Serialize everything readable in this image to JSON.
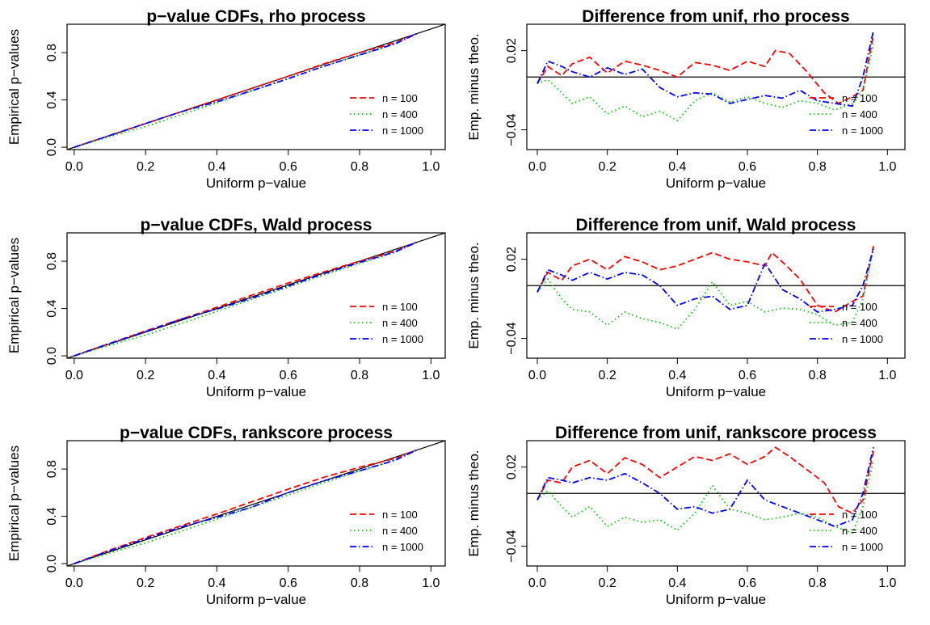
{
  "chart_data": [
    {
      "type": "line",
      "panel": "cdf",
      "title": "p−value CDFs, rho process",
      "xlabel": "Uniform p−value",
      "ylabel": "Empirical p−values",
      "xlim": [
        -0.02,
        1.04
      ],
      "ylim": [
        -0.02,
        1.04
      ],
      "xticks": [
        "0.0",
        "0.2",
        "0.4",
        "0.6",
        "0.8",
        "1.0"
      ],
      "yticks": [
        "0.0",
        "0.4",
        "0.8"
      ],
      "reference_line": "y = x",
      "legend_placement": "bottom-right",
      "series": [
        {
          "name": "n = 100",
          "color": "#ff0000",
          "dash": "dashed",
          "x": [
            0,
            0.1,
            0.2,
            0.3,
            0.4,
            0.5,
            0.6,
            0.7,
            0.8,
            0.9,
            0.96
          ],
          "y": [
            0,
            0.1,
            0.2,
            0.3,
            0.4,
            0.5,
            0.6,
            0.705,
            0.8,
            0.885,
            0.96
          ]
        },
        {
          "name": "n = 400",
          "color": "#00cc00",
          "dash": "dotted",
          "x": [
            0,
            0.1,
            0.2,
            0.3,
            0.4,
            0.5,
            0.6,
            0.7,
            0.8,
            0.9,
            0.96
          ],
          "y": [
            0,
            0.09,
            0.175,
            0.275,
            0.375,
            0.48,
            0.58,
            0.685,
            0.78,
            0.875,
            0.96
          ]
        },
        {
          "name": "n = 1000",
          "color": "#0000ff",
          "dash": "dotdash",
          "x": [
            0,
            0.1,
            0.2,
            0.3,
            0.4,
            0.5,
            0.6,
            0.7,
            0.8,
            0.9,
            0.96
          ],
          "y": [
            0,
            0.1,
            0.2,
            0.3,
            0.385,
            0.48,
            0.58,
            0.685,
            0.78,
            0.875,
            0.96
          ]
        }
      ]
    },
    {
      "type": "line",
      "panel": "diff",
      "title": "Difference from unif, rho process",
      "xlabel": "Uniform p−value",
      "ylabel": "Emp. minus theo.",
      "xlim": [
        -0.03,
        1.05
      ],
      "ylim": [
        -0.055,
        0.04
      ],
      "xticks": [
        "0.0",
        "0.2",
        "0.4",
        "0.6",
        "0.8",
        "1.0"
      ],
      "yticks": [
        "−0.04",
        "0.02"
      ],
      "reference_line": "y = 0",
      "legend_placement": "bottom-right",
      "series": [
        {
          "name": "n = 100",
          "color": "#ff0000",
          "dash": "dashed",
          "x": [
            0,
            0.03,
            0.07,
            0.1,
            0.15,
            0.2,
            0.25,
            0.3,
            0.35,
            0.4,
            0.45,
            0.5,
            0.55,
            0.6,
            0.65,
            0.68,
            0.72,
            0.77,
            0.82,
            0.86,
            0.9,
            0.93,
            0.96
          ],
          "y": [
            -0.005,
            0.008,
            0.001,
            0.01,
            0.015,
            0.003,
            0.012,
            0.009,
            0.005,
            0,
            0.011,
            0.009,
            0.005,
            0.012,
            0.008,
            0.02,
            0.018,
            0.004,
            -0.012,
            -0.02,
            -0.015,
            -0.01,
            0.032
          ]
        },
        {
          "name": "n = 400",
          "color": "#00cc00",
          "dash": "dotted",
          "x": [
            0,
            0.03,
            0.07,
            0.1,
            0.15,
            0.2,
            0.25,
            0.3,
            0.35,
            0.4,
            0.45,
            0.5,
            0.55,
            0.6,
            0.65,
            0.7,
            0.75,
            0.8,
            0.85,
            0.9,
            0.93,
            0.96
          ],
          "y": [
            -0.005,
            -0.002,
            -0.012,
            -0.02,
            -0.015,
            -0.028,
            -0.022,
            -0.03,
            -0.026,
            -0.033,
            -0.018,
            -0.012,
            -0.019,
            -0.015,
            -0.02,
            -0.023,
            -0.018,
            -0.02,
            -0.025,
            -0.02,
            -0.01,
            0.025
          ]
        },
        {
          "name": "n = 1000",
          "color": "#0000ff",
          "dash": "dotdash",
          "x": [
            0,
            0.03,
            0.07,
            0.1,
            0.15,
            0.2,
            0.25,
            0.3,
            0.35,
            0.4,
            0.45,
            0.5,
            0.55,
            0.6,
            0.65,
            0.7,
            0.75,
            0.8,
            0.85,
            0.9,
            0.93,
            0.96
          ],
          "y": [
            -0.005,
            0.012,
            0.008,
            0.004,
            0,
            0.007,
            0.002,
            0.006,
            -0.008,
            -0.015,
            -0.012,
            -0.013,
            -0.02,
            -0.017,
            -0.014,
            -0.016,
            -0.01,
            -0.018,
            -0.02,
            -0.022,
            0,
            0.035
          ]
        }
      ]
    },
    {
      "type": "line",
      "panel": "cdf",
      "title": "p−value CDFs, Wald process",
      "xlabel": "Uniform p−value",
      "ylabel": "Empirical p−values",
      "xlim": [
        -0.02,
        1.04
      ],
      "ylim": [
        -0.02,
        1.04
      ],
      "xticks": [
        "0.0",
        "0.2",
        "0.4",
        "0.6",
        "0.8",
        "1.0"
      ],
      "yticks": [
        "0.0",
        "0.4",
        "0.8"
      ],
      "reference_line": "y = x",
      "legend_placement": "bottom-right",
      "series": [
        {
          "name": "n = 100",
          "color": "#ff0000",
          "dash": "dashed",
          "x": [
            0,
            0.1,
            0.2,
            0.3,
            0.4,
            0.5,
            0.6,
            0.7,
            0.8,
            0.9,
            0.96
          ],
          "y": [
            0,
            0.105,
            0.21,
            0.31,
            0.41,
            0.515,
            0.615,
            0.71,
            0.8,
            0.885,
            0.96
          ]
        },
        {
          "name": "n = 400",
          "color": "#00cc00",
          "dash": "dotted",
          "x": [
            0,
            0.1,
            0.2,
            0.3,
            0.4,
            0.5,
            0.6,
            0.7,
            0.8,
            0.9,
            0.96
          ],
          "y": [
            0,
            0.09,
            0.175,
            0.275,
            0.375,
            0.48,
            0.58,
            0.685,
            0.78,
            0.875,
            0.96
          ]
        },
        {
          "name": "n = 1000",
          "color": "#0000ff",
          "dash": "dotdash",
          "x": [
            0,
            0.1,
            0.2,
            0.3,
            0.4,
            0.5,
            0.6,
            0.7,
            0.8,
            0.9,
            0.96
          ],
          "y": [
            0,
            0.105,
            0.205,
            0.31,
            0.395,
            0.49,
            0.59,
            0.695,
            0.79,
            0.88,
            0.96
          ]
        }
      ]
    },
    {
      "type": "line",
      "panel": "diff",
      "title": "Difference from unif, Wald process",
      "xlabel": "Uniform p−value",
      "ylabel": "Emp. minus theo.",
      "xlim": [
        -0.03,
        1.05
      ],
      "ylim": [
        -0.055,
        0.04
      ],
      "xticks": [
        "0.0",
        "0.2",
        "0.4",
        "0.6",
        "0.8",
        "1.0"
      ],
      "yticks": [
        "−0.04",
        "0.02"
      ],
      "reference_line": "y = 0",
      "legend_placement": "bottom-right",
      "series": [
        {
          "name": "n = 100",
          "color": "#ff0000",
          "dash": "dashed",
          "x": [
            0,
            0.03,
            0.07,
            0.1,
            0.15,
            0.2,
            0.25,
            0.3,
            0.35,
            0.4,
            0.45,
            0.5,
            0.55,
            0.6,
            0.65,
            0.67,
            0.7,
            0.75,
            0.8,
            0.85,
            0.9,
            0.93,
            0.96
          ],
          "y": [
            -0.005,
            0.01,
            0.004,
            0.015,
            0.02,
            0.012,
            0.022,
            0.018,
            0.012,
            0.015,
            0.02,
            0.025,
            0.02,
            0.018,
            0.015,
            0.025,
            0.018,
            0.005,
            -0.015,
            -0.02,
            -0.012,
            -0.008,
            0.03
          ]
        },
        {
          "name": "n = 400",
          "color": "#00cc00",
          "dash": "dotted",
          "x": [
            0,
            0.03,
            0.07,
            0.1,
            0.15,
            0.2,
            0.25,
            0.3,
            0.35,
            0.4,
            0.45,
            0.5,
            0.55,
            0.6,
            0.65,
            0.7,
            0.75,
            0.8,
            0.85,
            0.9,
            0.93,
            0.96
          ],
          "y": [
            -0.005,
            0.005,
            -0.01,
            -0.018,
            -0.02,
            -0.03,
            -0.02,
            -0.025,
            -0.028,
            -0.033,
            -0.018,
            0.003,
            -0.015,
            -0.012,
            -0.02,
            -0.017,
            -0.018,
            -0.022,
            -0.03,
            -0.028,
            -0.01,
            0.028
          ]
        },
        {
          "name": "n = 1000",
          "color": "#0000ff",
          "dash": "dotdash",
          "x": [
            0,
            0.03,
            0.07,
            0.1,
            0.15,
            0.2,
            0.25,
            0.3,
            0.35,
            0.4,
            0.45,
            0.5,
            0.55,
            0.6,
            0.65,
            0.7,
            0.75,
            0.8,
            0.85,
            0.9,
            0.93,
            0.96
          ],
          "y": [
            -0.005,
            0.012,
            0.008,
            0.004,
            0.01,
            0.005,
            0.01,
            0.008,
            0,
            -0.015,
            -0.01,
            -0.008,
            -0.018,
            -0.015,
            0.017,
            -0.003,
            -0.01,
            -0.02,
            -0.018,
            -0.015,
            0,
            0.028
          ]
        }
      ]
    },
    {
      "type": "line",
      "panel": "cdf",
      "title": "p−value CDFs, rankscore process",
      "xlabel": "Uniform p−value",
      "ylabel": "Empirical p−values",
      "xlim": [
        -0.02,
        1.04
      ],
      "ylim": [
        -0.02,
        1.04
      ],
      "xticks": [
        "0.0",
        "0.2",
        "0.4",
        "0.6",
        "0.8",
        "1.0"
      ],
      "yticks": [
        "0.0",
        "0.4",
        "0.8"
      ],
      "reference_line": "y = x",
      "legend_placement": "bottom-right",
      "series": [
        {
          "name": "n = 100",
          "color": "#ff0000",
          "dash": "dashed",
          "x": [
            0,
            0.1,
            0.2,
            0.3,
            0.4,
            0.5,
            0.6,
            0.7,
            0.8,
            0.9,
            0.96
          ],
          "y": [
            0,
            0.115,
            0.22,
            0.32,
            0.42,
            0.525,
            0.63,
            0.73,
            0.815,
            0.89,
            0.96
          ]
        },
        {
          "name": "n = 400",
          "color": "#00cc00",
          "dash": "dotted",
          "x": [
            0,
            0.1,
            0.2,
            0.3,
            0.4,
            0.5,
            0.6,
            0.7,
            0.8,
            0.9,
            0.96
          ],
          "y": [
            0,
            0.09,
            0.175,
            0.275,
            0.375,
            0.48,
            0.58,
            0.685,
            0.78,
            0.875,
            0.96
          ]
        },
        {
          "name": "n = 1000",
          "color": "#0000ff",
          "dash": "dotdash",
          "x": [
            0,
            0.1,
            0.2,
            0.3,
            0.4,
            0.5,
            0.6,
            0.7,
            0.8,
            0.9,
            0.96
          ],
          "y": [
            0,
            0.11,
            0.21,
            0.31,
            0.39,
            0.48,
            0.6,
            0.7,
            0.785,
            0.875,
            0.96
          ]
        }
      ]
    },
    {
      "type": "line",
      "panel": "diff",
      "title": "Difference from unif, rankscore process",
      "xlabel": "Uniform p−value",
      "ylabel": "Emp. minus theo.",
      "xlim": [
        -0.03,
        1.05
      ],
      "ylim": [
        -0.055,
        0.04
      ],
      "xticks": [
        "0.0",
        "0.2",
        "0.4",
        "0.6",
        "0.8",
        "1.0"
      ],
      "yticks": [
        "−0.04",
        "0.02"
      ],
      "reference_line": "y = 0",
      "legend_placement": "bottom-right",
      "series": [
        {
          "name": "n = 100",
          "color": "#ff0000",
          "dash": "dashed",
          "x": [
            0,
            0.03,
            0.07,
            0.1,
            0.15,
            0.2,
            0.25,
            0.3,
            0.35,
            0.4,
            0.45,
            0.5,
            0.55,
            0.6,
            0.65,
            0.68,
            0.72,
            0.77,
            0.82,
            0.86,
            0.9,
            0.93,
            0.96
          ],
          "y": [
            -0.005,
            0.01,
            0.008,
            0.02,
            0.025,
            0.015,
            0.027,
            0.022,
            0.012,
            0.02,
            0.028,
            0.025,
            0.03,
            0.022,
            0.028,
            0.035,
            0.028,
            0.018,
            0.008,
            -0.01,
            -0.015,
            -0.005,
            0.032
          ]
        },
        {
          "name": "n = 400",
          "color": "#00cc00",
          "dash": "dotted",
          "x": [
            0,
            0.03,
            0.07,
            0.1,
            0.15,
            0.2,
            0.25,
            0.3,
            0.35,
            0.4,
            0.45,
            0.5,
            0.55,
            0.6,
            0.65,
            0.7,
            0.75,
            0.8,
            0.85,
            0.9,
            0.93,
            0.96
          ],
          "y": [
            -0.005,
            0.002,
            -0.01,
            -0.018,
            -0.01,
            -0.025,
            -0.018,
            -0.022,
            -0.02,
            -0.028,
            -0.015,
            0.006,
            -0.012,
            -0.015,
            -0.02,
            -0.018,
            -0.015,
            -0.018,
            -0.025,
            -0.03,
            -0.01,
            0.025
          ]
        },
        {
          "name": "n = 1000",
          "color": "#0000ff",
          "dash": "dotdash",
          "x": [
            0,
            0.03,
            0.07,
            0.1,
            0.15,
            0.2,
            0.25,
            0.3,
            0.35,
            0.4,
            0.45,
            0.5,
            0.55,
            0.6,
            0.65,
            0.7,
            0.75,
            0.8,
            0.85,
            0.9,
            0.93,
            0.96
          ],
          "y": [
            -0.005,
            0.012,
            0.01,
            0.008,
            0.012,
            0.01,
            0.015,
            0.008,
            0,
            -0.012,
            -0.01,
            -0.015,
            -0.012,
            0.01,
            -0.005,
            -0.01,
            -0.015,
            -0.02,
            -0.025,
            -0.02,
            0,
            0.035
          ]
        }
      ]
    }
  ]
}
